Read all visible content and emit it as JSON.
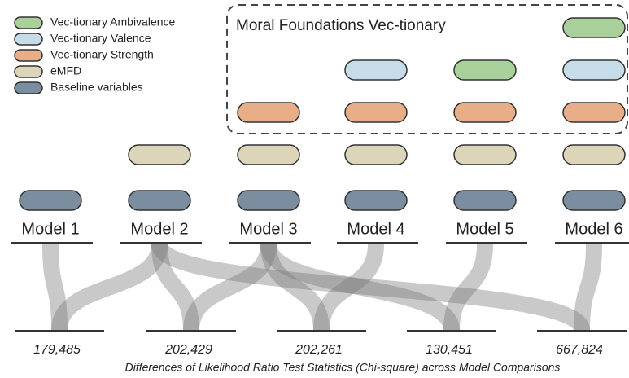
{
  "legend": [
    "Vec-tionary Ambivalence",
    "Vec-tionary Valence",
    "Vec-tionary Strength",
    "eMFD",
    "Baseline variables"
  ],
  "box_title": "Moral Foundations Vec-tionary",
  "models": [
    "Model 1",
    "Model 2",
    "Model 3",
    "Model 4",
    "Model 5",
    "Model 6"
  ],
  "comparisons": [
    "179,485",
    "202,429",
    "202,261",
    "130,451",
    "667,824"
  ],
  "caption": "Differences of Likelihood Ratio Test Statistics (Chi-square) across Model Comparisons"
}
